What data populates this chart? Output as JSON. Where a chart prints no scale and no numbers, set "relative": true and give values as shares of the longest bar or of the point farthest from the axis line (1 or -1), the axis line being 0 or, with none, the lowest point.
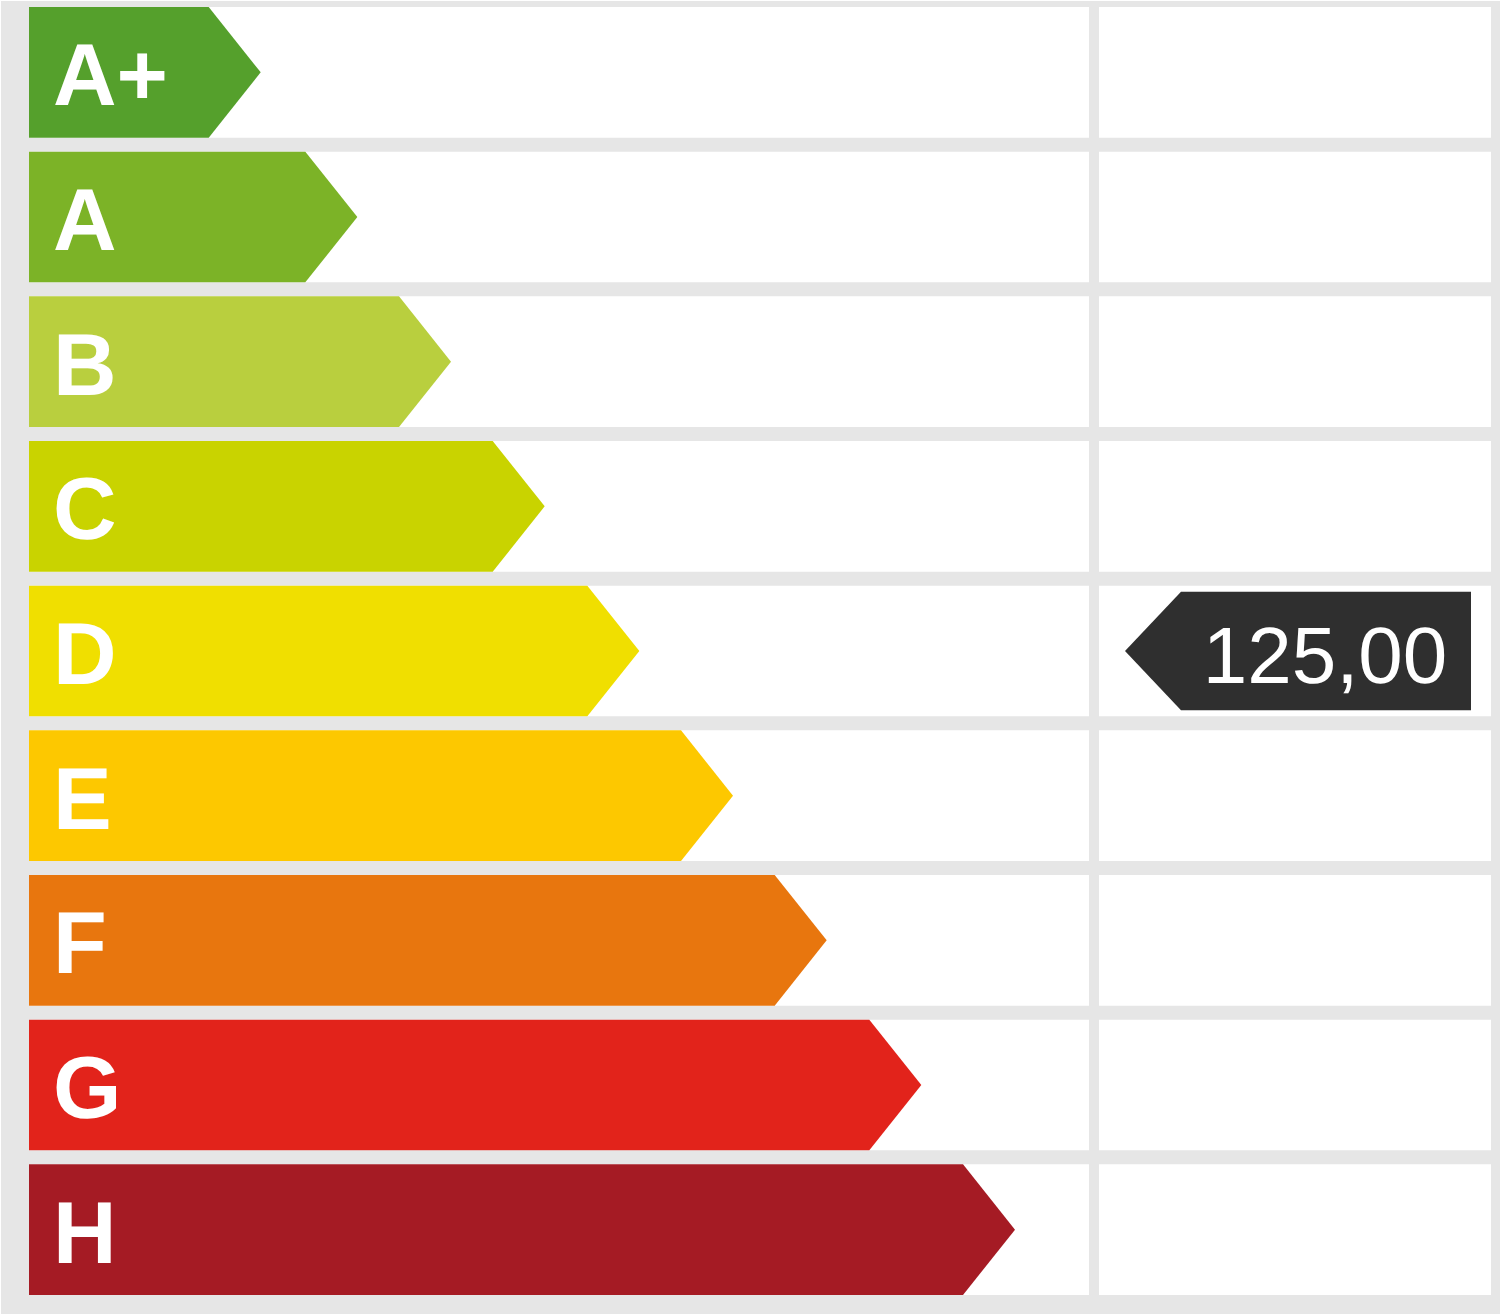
{
  "chart_data": {
    "type": "bar",
    "orientation": "horizontal",
    "relative": true,
    "categories": [
      "A+",
      "A",
      "B",
      "C",
      "D",
      "E",
      "F",
      "G",
      "H"
    ],
    "values": [
      0.235,
      0.333,
      0.428,
      0.523,
      0.619,
      0.714,
      0.809,
      0.905,
      1
    ],
    "colors": [
      "#55a02c",
      "#7cb327",
      "#b9cf3e",
      "#c9d300",
      "#f0df00",
      "#fdc800",
      "#e8760e",
      "#e2231b",
      "#a51b24"
    ],
    "annotations": [
      "125,00"
    ]
  }
}
